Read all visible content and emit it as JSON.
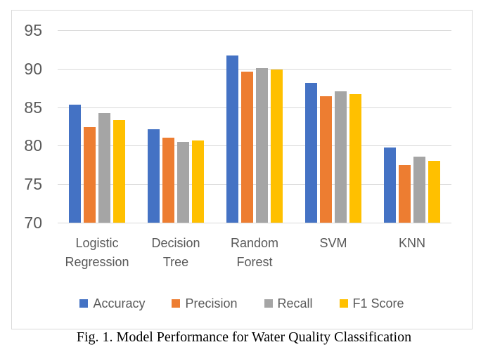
{
  "figure": {
    "caption": "Fig. 1. Model Performance for Water Quality Classification"
  },
  "chart_data": {
    "type": "bar",
    "title": "",
    "xlabel": "",
    "ylabel": "",
    "categories": [
      "Logistic Regression",
      "Decision Tree",
      "Random Forest",
      "SVM",
      "KNN"
    ],
    "categories_display": [
      [
        "Logistic",
        "Regression"
      ],
      [
        "Decision",
        "Tree"
      ],
      [
        "Random",
        "Forest"
      ],
      [
        "SVM"
      ],
      [
        "KNN"
      ]
    ],
    "series": [
      {
        "name": "Accuracy",
        "color": "#4472C4",
        "values": [
          85.3,
          82.1,
          91.7,
          88.2,
          79.8
        ]
      },
      {
        "name": "Precision",
        "color": "#ED7D31",
        "values": [
          82.4,
          81.0,
          89.6,
          86.4,
          77.5
        ]
      },
      {
        "name": "Recall",
        "color": "#A5A5A5",
        "values": [
          84.2,
          80.5,
          90.1,
          87.1,
          78.6
        ]
      },
      {
        "name": "F1 Score",
        "color": "#FFC000",
        "values": [
          83.3,
          80.7,
          89.9,
          86.7,
          78.0
        ]
      }
    ],
    "ylim": [
      70,
      95
    ],
    "yticks": [
      95,
      90,
      85,
      80,
      75,
      70
    ],
    "grid": true,
    "legend_position": "bottom"
  },
  "colors": {
    "grid": "#D9D9D9",
    "chart_border": "#D9D9D9",
    "axis_text": "#595959",
    "caption_text": "#000000",
    "background": "#FFFFFF"
  }
}
